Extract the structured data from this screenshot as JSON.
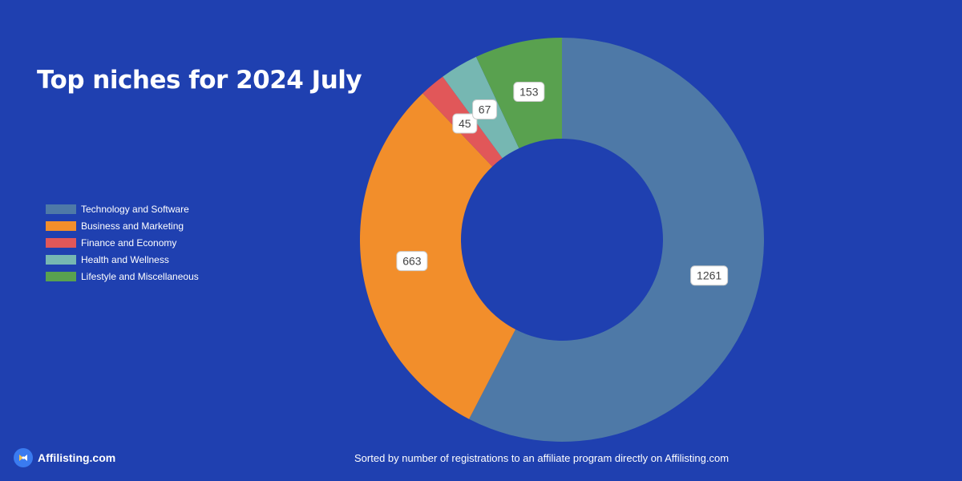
{
  "title": "Top niches for 2024 July",
  "chart_data": {
    "type": "pie",
    "variant": "donut",
    "title": "Top niches for 2024 July",
    "categories": [
      "Technology and Software",
      "Business and Marketing",
      "Finance and Economy",
      "Health and Wellness",
      "Lifestyle and Miscellaneous"
    ],
    "values": [
      1261,
      663,
      45,
      67,
      153
    ],
    "colors": [
      "#4e79a7",
      "#f28e2b",
      "#e15759",
      "#76b7b2",
      "#59a14f"
    ],
    "legend_position": "left"
  },
  "brand": {
    "name": "Affilisting.com",
    "logo_icon": "affilisting-logo-icon"
  },
  "footer": "Sorted by number of registrations to an affiliate program directly on Affilisting.com"
}
